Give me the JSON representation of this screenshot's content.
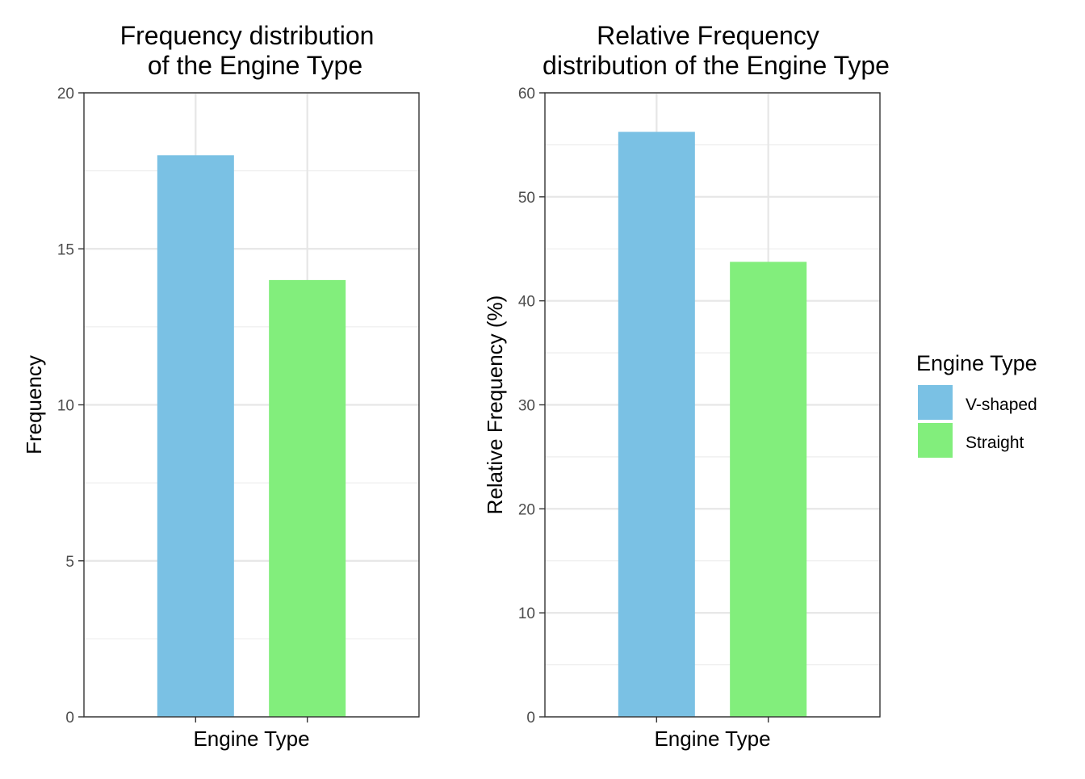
{
  "chart_data": [
    {
      "type": "bar",
      "title": "Frequency distribution\n of the Engine Type",
      "xlabel": "Engine Type",
      "ylabel": "Frequency",
      "categories": [
        "V-shaped",
        "Straight"
      ],
      "values": [
        18,
        14
      ],
      "ylim": [
        0,
        20
      ],
      "yticks": [
        0,
        5,
        10,
        15,
        20
      ],
      "colors": [
        "#7AC1E4",
        "#82EE7C"
      ],
      "grid": true,
      "show_x_tick_labels": false
    },
    {
      "type": "bar",
      "title": "Relative Frequency\ndistribution of the Engine Type",
      "xlabel": "Engine Type",
      "ylabel": "Relative Frequency (%)",
      "categories": [
        "V-shaped",
        "Straight"
      ],
      "values": [
        56.25,
        43.75
      ],
      "ylim": [
        0,
        60
      ],
      "yticks": [
        0,
        10,
        20,
        30,
        40,
        50,
        60
      ],
      "colors": [
        "#7AC1E4",
        "#82EE7C"
      ],
      "grid": true,
      "show_x_tick_labels": false
    }
  ],
  "legend": {
    "title": "Engine Type",
    "placement": "right",
    "items": [
      {
        "label": "V-shaped",
        "color": "#7AC1E4"
      },
      {
        "label": "Straight",
        "color": "#82EE7C"
      }
    ]
  }
}
